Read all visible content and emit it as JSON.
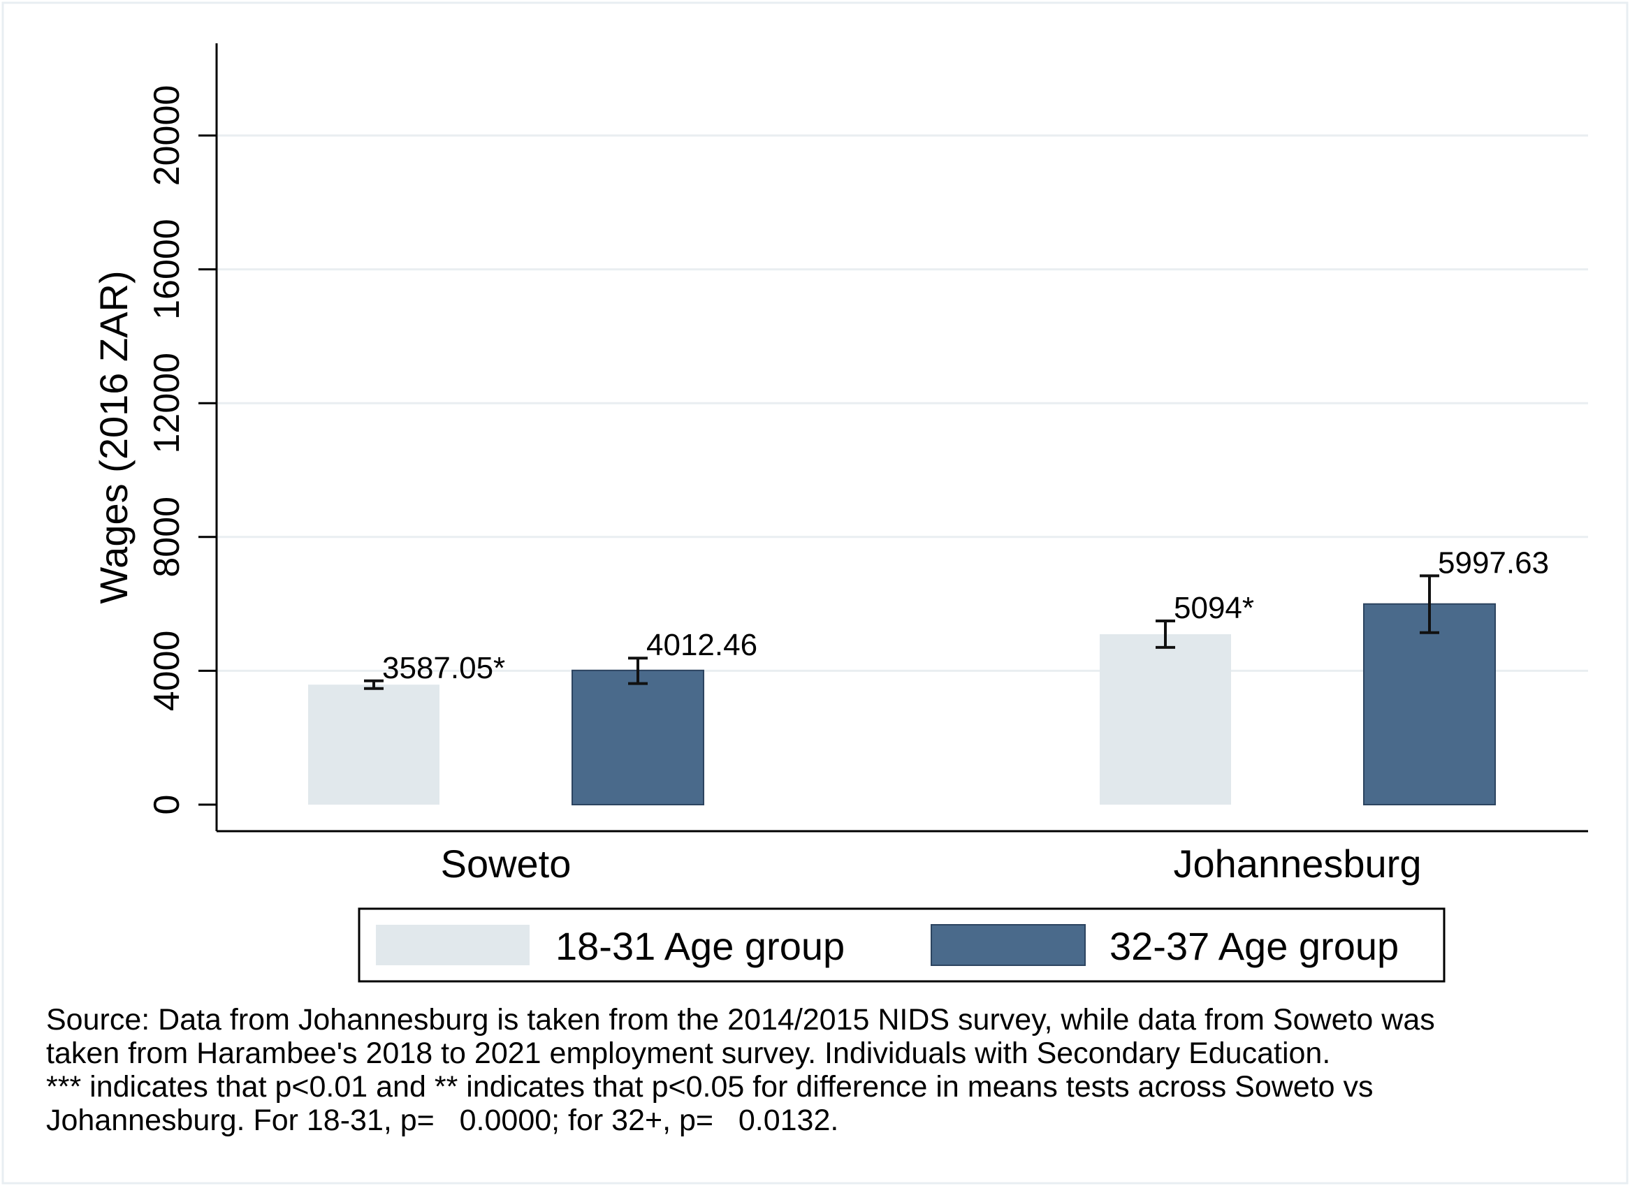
{
  "chart_data": {
    "type": "bar",
    "title": "",
    "ylabel": "Wages (2016 ZAR)",
    "xlabel": "",
    "ylim": [
      0,
      22000
    ],
    "yticks": [
      0,
      4000,
      8000,
      12000,
      16000,
      20000
    ],
    "ytick_labels": [
      "0",
      "4000",
      "8000",
      "12000",
      "16000",
      "20000"
    ],
    "grid": true,
    "legend_position": "bottom",
    "categories": [
      "Soweto",
      "Johannesburg"
    ],
    "series": [
      {
        "name": "18-31 Age group",
        "color": "#e1e8ec",
        "values": [
          3587.05,
          5094
        ],
        "labels": [
          "3587.05*",
          "5094*"
        ],
        "ci_low": [
          3470,
          4700
        ],
        "ci_high": [
          3700,
          5490
        ]
      },
      {
        "name": "32-37 Age group",
        "color": "#4a6a8b",
        "values": [
          4012.46,
          5997.63
        ],
        "labels": [
          "4012.46",
          "5997.63"
        ],
        "ci_low": [
          3620,
          5140
        ],
        "ci_high": [
          4380,
          6840
        ]
      }
    ]
  },
  "source_note": [
    "Source: Data from Johannesburg is taken from the 2014/2015 NIDS survey, while data from Soweto was",
    "taken from Harambee's 2018 to 2021 employment survey. Individuals with Secondary Education.",
    "*** indicates that p<0.01 and ** indicates that p<0.05 for difference in means tests across Soweto vs",
    "Johannesburg. For 18-31, p=   0.0000; for 32+, p=   0.0132."
  ]
}
